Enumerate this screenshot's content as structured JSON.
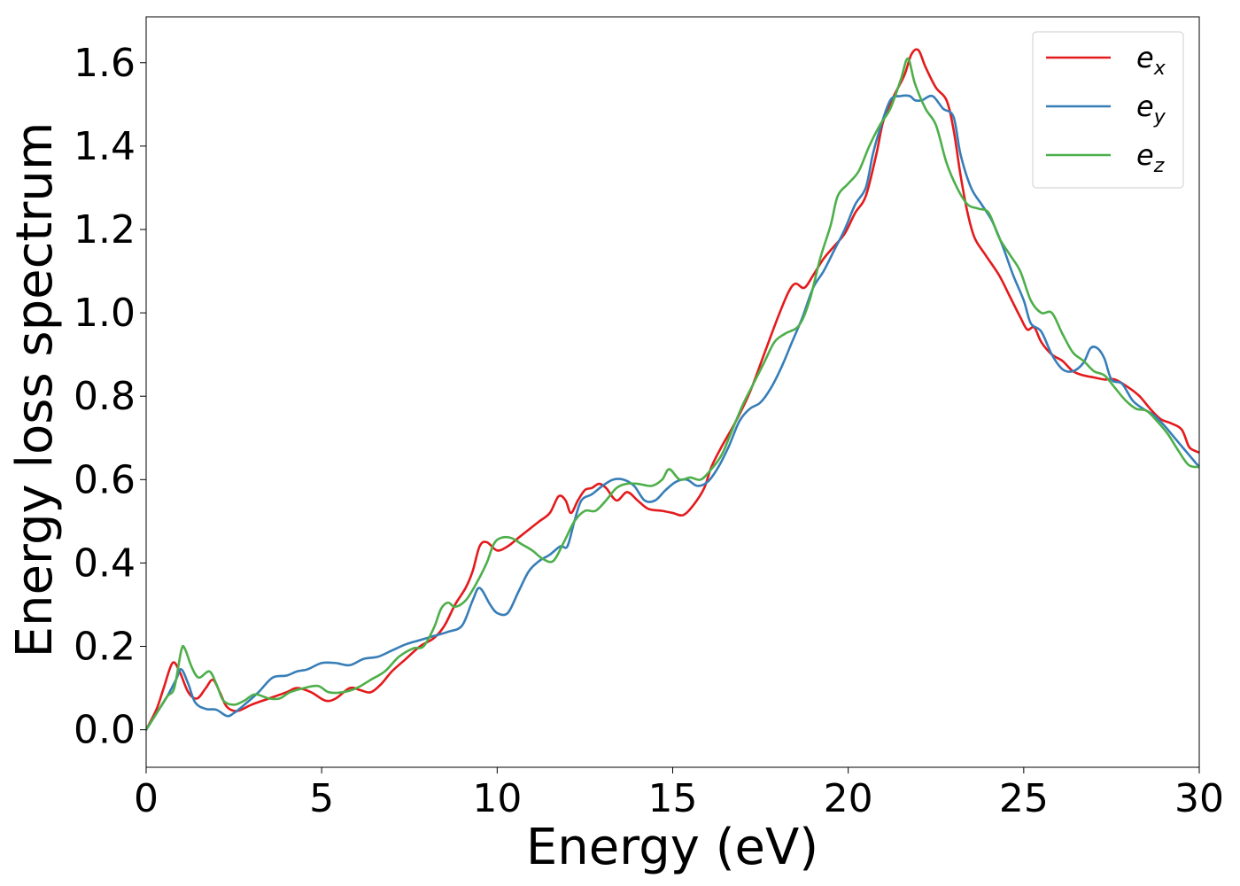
{
  "chart_data": {
    "type": "line",
    "xlabel": "Energy (eV)",
    "ylabel": "Energy loss spectrum",
    "xlim": [
      0,
      30
    ],
    "ylim": [
      -0.09,
      1.71
    ],
    "xticks": [
      0,
      5,
      10,
      15,
      20,
      25,
      30
    ],
    "xtick_labels": [
      "0",
      "5",
      "10",
      "15",
      "20",
      "25",
      "30"
    ],
    "yticks": [
      0.0,
      0.2,
      0.4,
      0.6,
      0.8,
      1.0,
      1.2,
      1.4,
      1.6
    ],
    "ytick_labels": [
      "0.0",
      "0.2",
      "0.4",
      "0.6",
      "0.8",
      "1.0",
      "1.2",
      "1.4",
      "1.6"
    ],
    "grid": false,
    "legend_position": "top-right",
    "series": [
      {
        "name": "e_x",
        "label_main": "e",
        "label_sub": "x",
        "color": "#e41a1c",
        "points": [
          [
            0,
            0
          ],
          [
            0.3,
            0.05
          ],
          [
            0.5,
            0.1
          ],
          [
            0.75,
            0.16
          ],
          [
            0.95,
            0.14
          ],
          [
            1.2,
            0.09
          ],
          [
            1.45,
            0.075
          ],
          [
            1.7,
            0.1
          ],
          [
            1.9,
            0.12
          ],
          [
            2.1,
            0.09
          ],
          [
            2.3,
            0.055
          ],
          [
            2.6,
            0.045
          ],
          [
            3.0,
            0.06
          ],
          [
            3.5,
            0.075
          ],
          [
            4.0,
            0.09
          ],
          [
            4.3,
            0.1
          ],
          [
            4.7,
            0.09
          ],
          [
            5.1,
            0.07
          ],
          [
            5.4,
            0.075
          ],
          [
            5.8,
            0.1
          ],
          [
            6.1,
            0.095
          ],
          [
            6.4,
            0.09
          ],
          [
            6.7,
            0.11
          ],
          [
            7.0,
            0.14
          ],
          [
            7.4,
            0.17
          ],
          [
            7.8,
            0.2
          ],
          [
            8.2,
            0.22
          ],
          [
            8.5,
            0.25
          ],
          [
            8.8,
            0.3
          ],
          [
            9.1,
            0.34
          ],
          [
            9.3,
            0.38
          ],
          [
            9.5,
            0.44
          ],
          [
            9.7,
            0.45
          ],
          [
            10.0,
            0.43
          ],
          [
            10.3,
            0.44
          ],
          [
            10.6,
            0.46
          ],
          [
            10.9,
            0.48
          ],
          [
            11.2,
            0.5
          ],
          [
            11.5,
            0.52
          ],
          [
            11.75,
            0.56
          ],
          [
            11.95,
            0.55
          ],
          [
            12.1,
            0.52
          ],
          [
            12.3,
            0.55
          ],
          [
            12.5,
            0.575
          ],
          [
            12.7,
            0.58
          ],
          [
            12.9,
            0.59
          ],
          [
            13.1,
            0.58
          ],
          [
            13.4,
            0.55
          ],
          [
            13.7,
            0.57
          ],
          [
            14.0,
            0.55
          ],
          [
            14.3,
            0.53
          ],
          [
            14.7,
            0.525
          ],
          [
            15.0,
            0.52
          ],
          [
            15.3,
            0.515
          ],
          [
            15.6,
            0.54
          ],
          [
            15.9,
            0.58
          ],
          [
            16.1,
            0.63
          ],
          [
            16.4,
            0.68
          ],
          [
            16.8,
            0.74
          ],
          [
            17.2,
            0.81
          ],
          [
            17.6,
            0.9
          ],
          [
            18.0,
            0.99
          ],
          [
            18.3,
            1.05
          ],
          [
            18.5,
            1.07
          ],
          [
            18.75,
            1.06
          ],
          [
            19.0,
            1.09
          ],
          [
            19.3,
            1.13
          ],
          [
            19.6,
            1.16
          ],
          [
            19.9,
            1.19
          ],
          [
            20.2,
            1.24
          ],
          [
            20.5,
            1.28
          ],
          [
            20.8,
            1.38
          ],
          [
            21.0,
            1.46
          ],
          [
            21.3,
            1.52
          ],
          [
            21.6,
            1.57
          ],
          [
            21.8,
            1.62
          ],
          [
            22.0,
            1.63
          ],
          [
            22.2,
            1.59
          ],
          [
            22.5,
            1.54
          ],
          [
            22.8,
            1.51
          ],
          [
            23.0,
            1.44
          ],
          [
            23.2,
            1.33
          ],
          [
            23.4,
            1.24
          ],
          [
            23.6,
            1.18
          ],
          [
            23.9,
            1.14
          ],
          [
            24.3,
            1.09
          ],
          [
            24.6,
            1.04
          ],
          [
            24.9,
            0.99
          ],
          [
            25.1,
            0.96
          ],
          [
            25.3,
            0.965
          ],
          [
            25.5,
            0.93
          ],
          [
            25.8,
            0.9
          ],
          [
            26.1,
            0.885
          ],
          [
            26.4,
            0.86
          ],
          [
            26.7,
            0.85
          ],
          [
            27.0,
            0.845
          ],
          [
            27.3,
            0.84
          ],
          [
            27.6,
            0.84
          ],
          [
            28.0,
            0.82
          ],
          [
            28.3,
            0.8
          ],
          [
            28.6,
            0.77
          ],
          [
            28.9,
            0.745
          ],
          [
            29.2,
            0.735
          ],
          [
            29.5,
            0.72
          ],
          [
            29.7,
            0.68
          ],
          [
            29.85,
            0.67
          ],
          [
            30.0,
            0.665
          ]
        ]
      },
      {
        "name": "e_y",
        "label_main": "e",
        "label_sub": "y",
        "color": "#377eb8",
        "points": [
          [
            0,
            0
          ],
          [
            0.3,
            0.04
          ],
          [
            0.6,
            0.08
          ],
          [
            0.85,
            0.12
          ],
          [
            1.0,
            0.145
          ],
          [
            1.2,
            0.11
          ],
          [
            1.4,
            0.065
          ],
          [
            1.7,
            0.05
          ],
          [
            2.0,
            0.048
          ],
          [
            2.3,
            0.033
          ],
          [
            2.5,
            0.04
          ],
          [
            2.8,
            0.06
          ],
          [
            3.2,
            0.09
          ],
          [
            3.6,
            0.125
          ],
          [
            4.0,
            0.13
          ],
          [
            4.3,
            0.14
          ],
          [
            4.6,
            0.145
          ],
          [
            5.0,
            0.16
          ],
          [
            5.4,
            0.16
          ],
          [
            5.8,
            0.155
          ],
          [
            6.2,
            0.17
          ],
          [
            6.6,
            0.175
          ],
          [
            7.0,
            0.19
          ],
          [
            7.4,
            0.205
          ],
          [
            7.8,
            0.215
          ],
          [
            8.2,
            0.225
          ],
          [
            8.6,
            0.235
          ],
          [
            9.0,
            0.25
          ],
          [
            9.3,
            0.31
          ],
          [
            9.5,
            0.34
          ],
          [
            9.8,
            0.3
          ],
          [
            10.0,
            0.28
          ],
          [
            10.3,
            0.28
          ],
          [
            10.6,
            0.33
          ],
          [
            10.9,
            0.38
          ],
          [
            11.2,
            0.405
          ],
          [
            11.5,
            0.42
          ],
          [
            11.8,
            0.44
          ],
          [
            12.0,
            0.44
          ],
          [
            12.2,
            0.5
          ],
          [
            12.4,
            0.55
          ],
          [
            12.7,
            0.565
          ],
          [
            13.0,
            0.585
          ],
          [
            13.3,
            0.6
          ],
          [
            13.6,
            0.6
          ],
          [
            13.9,
            0.585
          ],
          [
            14.2,
            0.55
          ],
          [
            14.5,
            0.55
          ],
          [
            14.8,
            0.575
          ],
          [
            15.1,
            0.595
          ],
          [
            15.4,
            0.6
          ],
          [
            15.7,
            0.585
          ],
          [
            16.0,
            0.595
          ],
          [
            16.3,
            0.63
          ],
          [
            16.6,
            0.68
          ],
          [
            16.9,
            0.74
          ],
          [
            17.2,
            0.77
          ],
          [
            17.5,
            0.785
          ],
          [
            17.8,
            0.82
          ],
          [
            18.1,
            0.87
          ],
          [
            18.4,
            0.93
          ],
          [
            18.7,
            0.99
          ],
          [
            19.0,
            1.06
          ],
          [
            19.3,
            1.1
          ],
          [
            19.6,
            1.15
          ],
          [
            19.9,
            1.2
          ],
          [
            20.2,
            1.26
          ],
          [
            20.5,
            1.3
          ],
          [
            20.7,
            1.38
          ],
          [
            20.9,
            1.44
          ],
          [
            21.2,
            1.51
          ],
          [
            21.5,
            1.52
          ],
          [
            21.75,
            1.52
          ],
          [
            21.9,
            1.51
          ],
          [
            22.1,
            1.51
          ],
          [
            22.4,
            1.52
          ],
          [
            22.7,
            1.49
          ],
          [
            23.0,
            1.47
          ],
          [
            23.2,
            1.38
          ],
          [
            23.5,
            1.3
          ],
          [
            23.8,
            1.26
          ],
          [
            24.1,
            1.22
          ],
          [
            24.4,
            1.16
          ],
          [
            24.7,
            1.09
          ],
          [
            25.0,
            1.03
          ],
          [
            25.2,
            0.975
          ],
          [
            25.5,
            0.955
          ],
          [
            25.8,
            0.9
          ],
          [
            26.1,
            0.865
          ],
          [
            26.4,
            0.86
          ],
          [
            26.7,
            0.88
          ],
          [
            26.9,
            0.915
          ],
          [
            27.1,
            0.915
          ],
          [
            27.3,
            0.89
          ],
          [
            27.5,
            0.84
          ],
          [
            27.8,
            0.83
          ],
          [
            28.1,
            0.79
          ],
          [
            28.4,
            0.77
          ],
          [
            28.7,
            0.755
          ],
          [
            29.0,
            0.73
          ],
          [
            29.3,
            0.7
          ],
          [
            29.6,
            0.67
          ],
          [
            30.0,
            0.63
          ]
        ]
      },
      {
        "name": "e_z",
        "label_main": "e",
        "label_sub": "z",
        "color": "#4daf4a",
        "points": [
          [
            0,
            0
          ],
          [
            0.3,
            0.04
          ],
          [
            0.6,
            0.08
          ],
          [
            0.8,
            0.1
          ],
          [
            1.0,
            0.19
          ],
          [
            1.1,
            0.195
          ],
          [
            1.3,
            0.15
          ],
          [
            1.5,
            0.125
          ],
          [
            1.8,
            0.14
          ],
          [
            2.0,
            0.11
          ],
          [
            2.2,
            0.07
          ],
          [
            2.5,
            0.06
          ],
          [
            2.8,
            0.07
          ],
          [
            3.1,
            0.085
          ],
          [
            3.5,
            0.075
          ],
          [
            3.8,
            0.075
          ],
          [
            4.1,
            0.09
          ],
          [
            4.5,
            0.1
          ],
          [
            4.9,
            0.105
          ],
          [
            5.2,
            0.09
          ],
          [
            5.6,
            0.09
          ],
          [
            6.0,
            0.1
          ],
          [
            6.4,
            0.12
          ],
          [
            6.8,
            0.14
          ],
          [
            7.2,
            0.175
          ],
          [
            7.6,
            0.195
          ],
          [
            7.9,
            0.2
          ],
          [
            8.2,
            0.245
          ],
          [
            8.4,
            0.29
          ],
          [
            8.6,
            0.305
          ],
          [
            8.8,
            0.295
          ],
          [
            9.1,
            0.31
          ],
          [
            9.4,
            0.35
          ],
          [
            9.7,
            0.4
          ],
          [
            9.9,
            0.445
          ],
          [
            10.1,
            0.46
          ],
          [
            10.4,
            0.46
          ],
          [
            10.7,
            0.445
          ],
          [
            11.0,
            0.43
          ],
          [
            11.3,
            0.41
          ],
          [
            11.6,
            0.405
          ],
          [
            11.9,
            0.45
          ],
          [
            12.2,
            0.5
          ],
          [
            12.5,
            0.525
          ],
          [
            12.8,
            0.525
          ],
          [
            13.1,
            0.55
          ],
          [
            13.4,
            0.58
          ],
          [
            13.7,
            0.59
          ],
          [
            14.0,
            0.59
          ],
          [
            14.4,
            0.585
          ],
          [
            14.7,
            0.6
          ],
          [
            14.9,
            0.625
          ],
          [
            15.2,
            0.6
          ],
          [
            15.5,
            0.605
          ],
          [
            15.8,
            0.6
          ],
          [
            16.1,
            0.625
          ],
          [
            16.4,
            0.66
          ],
          [
            16.7,
            0.72
          ],
          [
            17.0,
            0.78
          ],
          [
            17.3,
            0.83
          ],
          [
            17.6,
            0.88
          ],
          [
            17.9,
            0.93
          ],
          [
            18.2,
            0.95
          ],
          [
            18.6,
            0.97
          ],
          [
            18.9,
            1.03
          ],
          [
            19.2,
            1.13
          ],
          [
            19.5,
            1.21
          ],
          [
            19.7,
            1.28
          ],
          [
            20.0,
            1.31
          ],
          [
            20.3,
            1.34
          ],
          [
            20.6,
            1.4
          ],
          [
            20.9,
            1.45
          ],
          [
            21.2,
            1.49
          ],
          [
            21.5,
            1.56
          ],
          [
            21.7,
            1.61
          ],
          [
            21.9,
            1.55
          ],
          [
            22.2,
            1.49
          ],
          [
            22.5,
            1.45
          ],
          [
            22.8,
            1.36
          ],
          [
            23.1,
            1.3
          ],
          [
            23.4,
            1.26
          ],
          [
            23.7,
            1.25
          ],
          [
            24.0,
            1.24
          ],
          [
            24.3,
            1.18
          ],
          [
            24.6,
            1.14
          ],
          [
            24.9,
            1.1
          ],
          [
            25.2,
            1.03
          ],
          [
            25.5,
            1.0
          ],
          [
            25.8,
            1.0
          ],
          [
            26.1,
            0.95
          ],
          [
            26.4,
            0.905
          ],
          [
            26.7,
            0.885
          ],
          [
            27.0,
            0.86
          ],
          [
            27.3,
            0.85
          ],
          [
            27.6,
            0.82
          ],
          [
            27.9,
            0.79
          ],
          [
            28.2,
            0.77
          ],
          [
            28.5,
            0.765
          ],
          [
            28.8,
            0.74
          ],
          [
            29.1,
            0.71
          ],
          [
            29.4,
            0.67
          ],
          [
            29.7,
            0.635
          ],
          [
            30.0,
            0.63
          ]
        ]
      }
    ]
  }
}
